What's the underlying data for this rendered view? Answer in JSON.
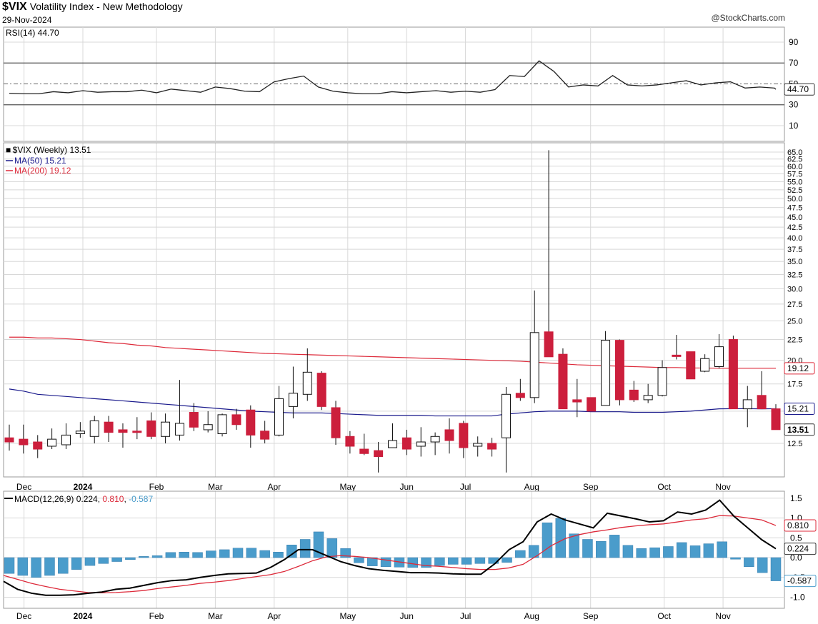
{
  "header": {
    "symbol": "$VIX",
    "title": "Volatility Index - New Methodology",
    "date": "29-Nov-2024",
    "brand": "@StockCharts.com"
  },
  "colors": {
    "up": "#ffffff",
    "down": "#cc1f3c",
    "flat": "#000000",
    "ma50": "#1a1a8c",
    "ma200": "#dd2a3a",
    "macd": "#000000",
    "signal": "#dd2a3a",
    "hist": "#4a9ccb",
    "grid": "#d8d8d8"
  },
  "rsi_panel": {
    "label": "RSI(14)",
    "value_text": "44.70",
    "current_badge": "44.70",
    "ticks": [
      "90",
      "70",
      "50",
      "30",
      "10"
    ]
  },
  "price_panel": {
    "label": "$VIX (Weekly)",
    "value_text": "13.51",
    "ma50_label": "MA(50)",
    "ma50_value": "15.21",
    "ma200_label": "MA(200)",
    "ma200_value": "19.12",
    "badge_price": "13.51",
    "badge_ma50": "15.21",
    "badge_ma200": "19.12",
    "ticks": [
      "65.0",
      "62.5",
      "60.0",
      "57.5",
      "55.0",
      "52.5",
      "50.0",
      "47.5",
      "45.0",
      "42.5",
      "40.0",
      "37.5",
      "35.0",
      "32.5",
      "30.0",
      "27.5",
      "25.0",
      "22.5",
      "20.0",
      "17.5",
      "15.0",
      "12.5"
    ]
  },
  "macd_panel": {
    "label": "MACD(12,26,9)",
    "macd_value": "0.224",
    "signal_value": "0.810",
    "hist_value": "-0.587",
    "badge_signal": "0.810",
    "badge_macd": "0.224",
    "badge_hist": "-0.587",
    "ticks": [
      "1.5",
      "1.0",
      "0.5",
      "0.0",
      "-0.5",
      "-1.0"
    ]
  },
  "x_axis": {
    "labels": [
      {
        "text": "Dec",
        "week": 1
      },
      {
        "text": "2024",
        "week": 5
      },
      {
        "text": "Feb",
        "week": 10
      },
      {
        "text": "Mar",
        "week": 14
      },
      {
        "text": "Apr",
        "week": 18
      },
      {
        "text": "May",
        "week": 23
      },
      {
        "text": "Jun",
        "week": 27
      },
      {
        "text": "Jul",
        "week": 31
      },
      {
        "text": "Aug",
        "week": 35.5
      },
      {
        "text": "Sep",
        "week": 39.5
      },
      {
        "text": "Oct",
        "week": 44.5
      },
      {
        "text": "Nov",
        "week": 48.5
      }
    ]
  },
  "chart_data": {
    "type": "candlestick",
    "symbol": "$VIX",
    "interval": "weekly",
    "dates": [
      "2023-11-27",
      "2023-12-04",
      "2023-12-11",
      "2023-12-18",
      "2023-12-25",
      "2024-01-01",
      "2024-01-08",
      "2024-01-15",
      "2024-01-22",
      "2024-01-29",
      "2024-02-05",
      "2024-02-12",
      "2024-02-19",
      "2024-02-26",
      "2024-03-04",
      "2024-03-11",
      "2024-03-18",
      "2024-03-25",
      "2024-04-01",
      "2024-04-08",
      "2024-04-15",
      "2024-04-22",
      "2024-04-29",
      "2024-05-06",
      "2024-05-13",
      "2024-05-20",
      "2024-05-27",
      "2024-06-03",
      "2024-06-10",
      "2024-06-17",
      "2024-06-24",
      "2024-07-01",
      "2024-07-08",
      "2024-07-15",
      "2024-07-22",
      "2024-07-29",
      "2024-08-05",
      "2024-08-12",
      "2024-08-19",
      "2024-08-26",
      "2024-09-02",
      "2024-09-09",
      "2024-09-16",
      "2024-09-23",
      "2024-09-30",
      "2024-10-07",
      "2024-10-14",
      "2024-10-21",
      "2024-10-28",
      "2024-11-04",
      "2024-11-11",
      "2024-11-18",
      "2024-11-25"
    ],
    "ohlc": [
      [
        12.9,
        13.9,
        12.0,
        12.6
      ],
      [
        12.8,
        13.9,
        11.8,
        12.4
      ],
      [
        12.6,
        13.1,
        11.5,
        12.1
      ],
      [
        12.3,
        13.6,
        12.1,
        12.8
      ],
      [
        12.4,
        14.0,
        12.1,
        13.1
      ],
      [
        13.2,
        14.1,
        12.9,
        13.4
      ],
      [
        13.0,
        14.6,
        12.5,
        14.2
      ],
      [
        14.1,
        14.6,
        12.6,
        13.3
      ],
      [
        13.5,
        14.0,
        12.2,
        13.3
      ],
      [
        13.4,
        14.5,
        12.8,
        13.3
      ],
      [
        14.2,
        14.9,
        12.8,
        13.0
      ],
      [
        13.0,
        14.8,
        12.5,
        14.1
      ],
      [
        13.1,
        17.9,
        12.7,
        14.0
      ],
      [
        14.9,
        15.7,
        13.4,
        13.7
      ],
      [
        13.5,
        15.0,
        13.3,
        13.9
      ],
      [
        13.2,
        14.8,
        13.0,
        14.7
      ],
      [
        14.7,
        15.2,
        13.5,
        13.9
      ],
      [
        15.1,
        15.5,
        12.2,
        13.1
      ],
      [
        13.4,
        14.2,
        12.5,
        12.8
      ],
      [
        13.1,
        17.3,
        13.0,
        16.1
      ],
      [
        15.4,
        19.3,
        14.4,
        16.6
      ],
      [
        16.5,
        21.4,
        15.9,
        18.7
      ],
      [
        18.6,
        18.8,
        15.1,
        15.4
      ],
      [
        15.3,
        15.9,
        12.4,
        12.9
      ],
      [
        13.0,
        13.4,
        11.8,
        12.3
      ],
      [
        12.1,
        13.2,
        11.7,
        11.8
      ],
      [
        12.0,
        12.6,
        10.6,
        11.6
      ],
      [
        12.2,
        14.0,
        12.2,
        12.7
      ],
      [
        12.9,
        13.5,
        11.7,
        12.1
      ],
      [
        12.3,
        13.7,
        11.6,
        12.6
      ],
      [
        12.6,
        13.3,
        11.7,
        13.0
      ],
      [
        13.5,
        14.4,
        11.8,
        12.7
      ],
      [
        14.0,
        14.2,
        11.5,
        12.2
      ],
      [
        12.3,
        13.0,
        11.6,
        12.5
      ],
      [
        12.5,
        12.9,
        11.6,
        12.1
      ],
      [
        12.9,
        17.2,
        10.6,
        16.5
      ],
      [
        16.6,
        18.0,
        15.9,
        16.2
      ],
      [
        16.2,
        29.7,
        15.7,
        23.4
      ],
      [
        23.5,
        65.7,
        20.5,
        20.4
      ],
      [
        20.7,
        21.4,
        15.6,
        15.2
      ],
      [
        16.0,
        18.0,
        14.5,
        15.8
      ],
      [
        16.2,
        16.2,
        15.2,
        15.0
      ],
      [
        15.5,
        23.6,
        15.6,
        22.4
      ],
      [
        22.4,
        22.5,
        15.5,
        16.0
      ],
      [
        16.9,
        17.8,
        15.8,
        16.0
      ],
      [
        16.0,
        17.5,
        15.7,
        16.4
      ],
      [
        16.4,
        20.0,
        16.3,
        19.2
      ],
      [
        20.6,
        23.1,
        20.1,
        20.5
      ],
      [
        21.0,
        21.0,
        18.2,
        18.0
      ],
      [
        18.8,
        20.7,
        18.7,
        20.2
      ],
      [
        19.3,
        23.2,
        19.1,
        21.6
      ],
      [
        22.5,
        23.0,
        15.2,
        15.2
      ],
      [
        15.2,
        17.3,
        13.7,
        16.0
      ]
    ],
    "ohlc_tail": [
      [
        16.4,
        18.8,
        15.3,
        15.2
      ],
      [
        15.2,
        15.6,
        13.5,
        13.51
      ]
    ],
    "ma50": [
      17.0,
      16.8,
      16.5,
      16.4,
      16.3,
      16.2,
      16.1,
      16.0,
      15.9,
      15.8,
      15.7,
      15.6,
      15.5,
      15.4,
      15.3,
      15.2,
      15.1,
      15.0,
      14.95,
      14.9,
      14.85,
      14.85,
      14.85,
      14.8,
      14.75,
      14.7,
      14.65,
      14.65,
      14.65,
      14.65,
      14.6,
      14.6,
      14.6,
      14.6,
      14.6,
      14.75,
      14.85,
      14.95,
      15.0,
      15.0,
      15.0,
      14.95,
      14.95,
      14.95,
      14.9,
      14.9,
      14.9,
      14.95,
      15.0,
      15.1,
      15.2,
      15.21,
      15.21,
      15.2,
      15.21
    ],
    "ma200": [
      22.8,
      22.8,
      22.7,
      22.7,
      22.6,
      22.5,
      22.3,
      22.1,
      22.0,
      21.8,
      21.7,
      21.5,
      21.4,
      21.3,
      21.2,
      21.1,
      21.0,
      20.9,
      20.8,
      20.75,
      20.7,
      20.65,
      20.6,
      20.55,
      20.5,
      20.45,
      20.4,
      20.35,
      20.3,
      20.25,
      20.2,
      20.15,
      20.1,
      20.05,
      20.0,
      19.95,
      19.9,
      19.8,
      19.7,
      19.6,
      19.5,
      19.45,
      19.4,
      19.35,
      19.3,
      19.25,
      19.2,
      19.2,
      19.15,
      19.15,
      19.12,
      19.12,
      19.12,
      19.12,
      19.12
    ],
    "rsi": [
      41,
      40.5,
      40.5,
      42.5,
      41.5,
      43.5,
      42,
      42.5,
      42.5,
      44,
      41.5,
      45,
      43.5,
      42,
      47,
      45.5,
      43,
      42.5,
      52,
      55,
      57.5,
      47,
      43,
      41.5,
      40.5,
      40.5,
      42.5,
      41.5,
      42.5,
      43.5,
      42,
      43,
      42,
      44.5,
      58,
      57,
      72,
      62,
      47,
      49,
      48,
      58,
      49,
      48,
      49,
      51,
      53,
      49,
      51,
      52,
      46,
      47,
      46,
      44.7
    ],
    "macd": [
      -0.6,
      -0.8,
      -0.9,
      -0.95,
      -0.95,
      -0.94,
      -0.9,
      -0.87,
      -0.8,
      -0.77,
      -0.7,
      -0.63,
      -0.58,
      -0.56,
      -0.5,
      -0.45,
      -0.41,
      -0.4,
      -0.39,
      -0.25,
      -0.05,
      0.2,
      0.2,
      0.05,
      -0.1,
      -0.2,
      -0.28,
      -0.32,
      -0.35,
      -0.38,
      -0.38,
      -0.39,
      -0.41,
      -0.42,
      -0.42,
      -0.15,
      0.2,
      0.4,
      0.9,
      1.1,
      0.95,
      0.85,
      0.75,
      1.12,
      1.05,
      0.98,
      0.9,
      0.93,
      1.15,
      1.1,
      1.2,
      1.45,
      1.05,
      0.75,
      0.45,
      0.224
    ],
    "signal": [
      -0.45,
      -0.55,
      -0.65,
      -0.73,
      -0.8,
      -0.84,
      -0.88,
      -0.89,
      -0.88,
      -0.86,
      -0.83,
      -0.78,
      -0.74,
      -0.7,
      -0.65,
      -0.62,
      -0.58,
      -0.53,
      -0.48,
      -0.43,
      -0.35,
      -0.22,
      -0.08,
      0.02,
      0.05,
      0.03,
      0.0,
      -0.05,
      -0.1,
      -0.15,
      -0.2,
      -0.22,
      -0.25,
      -0.28,
      -0.3,
      -0.3,
      -0.26,
      -0.17,
      0.05,
      0.3,
      0.48,
      0.58,
      0.65,
      0.7,
      0.76,
      0.8,
      0.83,
      0.85,
      0.9,
      0.95,
      0.98,
      1.06,
      1.05,
      1.0,
      0.95,
      0.81
    ],
    "hist": [
      -0.4,
      -0.45,
      -0.5,
      -0.45,
      -0.4,
      -0.3,
      -0.2,
      -0.15,
      -0.1,
      -0.05,
      0.03,
      0.05,
      0.13,
      0.14,
      0.13,
      0.17,
      0.2,
      0.24,
      0.24,
      0.18,
      0.14,
      0.32,
      0.46,
      0.65,
      0.48,
      0.23,
      -0.13,
      -0.21,
      -0.23,
      -0.24,
      -0.25,
      -0.25,
      -0.2,
      -0.17,
      -0.17,
      -0.15,
      -0.15,
      -0.12,
      0.18,
      0.31,
      0.88,
      0.99,
      0.6,
      0.46,
      0.41,
      0.57,
      0.31,
      0.23,
      0.25,
      0.28,
      0.38,
      0.3,
      0.35,
      0.4,
      -0.04,
      -0.23,
      -0.38,
      -0.587
    ]
  }
}
